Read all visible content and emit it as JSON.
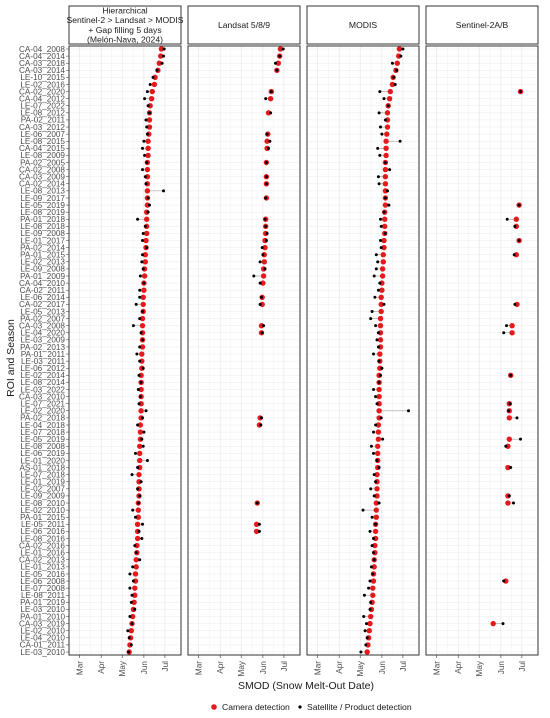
{
  "chart_data": {
    "type": "scatter",
    "subtype": "faceted dumbbell plot",
    "xlabel": "SMOD (Snow Melt-Out Date)",
    "ylabel": "ROI and Season",
    "x_ticks": [
      {
        "label": "Mar",
        "doy": 60
      },
      {
        "label": "Apr",
        "doy": 91
      },
      {
        "label": "May",
        "doy": 121
      },
      {
        "label": "Jun",
        "doy": 152
      },
      {
        "label": "Jul",
        "doy": 182
      }
    ],
    "x_range_doy": [
      45,
      205
    ],
    "grid": true,
    "legend_position": "bottom",
    "legend": [
      {
        "label": "Camera detection",
        "color": "#e41a1c"
      },
      {
        "label": "Satellite / Product detection",
        "color": "#000000"
      }
    ],
    "facets": [
      {
        "title_lines": [
          "Hierarchical",
          "Sentinel-2 > Landsat > MODIS",
          "+ Gap filling 5 days",
          "(Melón-Nava, 2024)"
        ]
      },
      {
        "title_lines": [
          "Landsat 5/8/9"
        ]
      },
      {
        "title_lines": [
          "MODIS"
        ]
      },
      {
        "title_lines": [
          "Sentinel-2A/B"
        ]
      }
    ],
    "rows": [
      "CA-04_2008",
      "CA-04_2014",
      "CA-03_2018",
      "CA-03_2014",
      "LE-10_2015",
      "LE-02_2016",
      "CA-02_2020",
      "CA-04_2012",
      "LE-07_2022",
      "LE-08_2012",
      "PA-02_2011",
      "CA-03_2012",
      "LE-06_2007",
      "LE-08_2015",
      "CA-04_2015",
      "LE-08_2009",
      "PA-02_2005",
      "CA-02_2008",
      "CA-03_2009",
      "CA-02_2014",
      "LE-08_2013",
      "LE-09_2017",
      "LE-05_2019",
      "LE-08_2019",
      "PA-01_2018",
      "LE-08_2018",
      "LE-09_2008",
      "LE-01_2017",
      "PA-02_2014",
      "PA-01_2015",
      "LE-02_2013",
      "LE-09_2008",
      "PA-01_2009",
      "CA-04_2010",
      "CA-02_2011",
      "LE-06_2014",
      "CA-02_2017",
      "LE-05_2013",
      "PA-02_2007",
      "CA-03_2008",
      "LE-04_2020",
      "LE-03_2009",
      "PA-02_2013",
      "PA-01_2011",
      "LE-03_2011",
      "LE-06_2012",
      "LE-02_2014",
      "LE-08_2014",
      "LE-03_2022",
      "CA-03_2010",
      "LE-07_2021",
      "LE-02_2020",
      "PA-02_2018",
      "LE-04_2018",
      "LE-07_2018",
      "LE-05_2019",
      "LE-08_2008",
      "LE-06_2019",
      "LE-01_2020",
      "AS-01_2018",
      "LE-07_2018",
      "LE-01_2019",
      "LE-02_2007",
      "LE-09_2009",
      "LE-08_2010",
      "LE-02_2010",
      "PA-01_2015",
      "LE-05_2011",
      "LE-06_2016",
      "LE-08_2016",
      "CA-02_2016",
      "LE-01_2016",
      "CA-02_2013",
      "LE-01_2013",
      "LE-05_2016",
      "LE-06_2008",
      "LE-07_2008",
      "LE-08_2011",
      "PA-01_2019",
      "LE-03_2010",
      "PA-01_2010",
      "CA-03_2019",
      "LE-02_2010",
      "LE-04_2010",
      "CA-01_2011",
      "LE-03_2010"
    ],
    "values": {
      "camera": [
        177,
        176,
        174,
        172,
        168,
        167,
        164,
        163,
        161,
        160,
        160,
        160,
        159,
        158,
        158,
        158,
        157,
        157,
        157,
        157,
        157,
        157,
        157,
        156,
        156,
        156,
        156,
        155,
        155,
        154,
        154,
        153,
        153,
        152,
        152,
        151,
        151,
        151,
        150,
        150,
        150,
        150,
        150,
        149,
        149,
        149,
        148,
        148,
        148,
        148,
        148,
        148,
        148,
        147,
        147,
        147,
        146,
        146,
        146,
        146,
        145,
        145,
        145,
        145,
        144,
        144,
        144,
        143,
        143,
        143,
        142,
        142,
        141,
        141,
        140,
        140,
        139,
        139,
        138,
        137,
        136,
        135,
        134,
        133,
        132,
        131
      ],
      "hierarchical": [
        181,
        180,
        178,
        171,
        165,
        161,
        157,
        153,
        158,
        160,
        155,
        156,
        157,
        152,
        150,
        153,
        156,
        150,
        154,
        155,
        180,
        158,
        160,
        158,
        143,
        154,
        151,
        150,
        156,
        150,
        149,
        151,
        147,
        152,
        146,
        146,
        141,
        150,
        146,
        137,
        148,
        150,
        146,
        142,
        146,
        151,
        145,
        148,
        144,
        147,
        145,
        155,
        150,
        143,
        152,
        149,
        151,
        140,
        157,
        143,
        135,
        148,
        143,
        146,
        144,
        136,
        140,
        150,
        145,
        149,
        139,
        141,
        146,
        136,
        132,
        137,
        132,
        135,
        134,
        139,
        132,
        135,
        129,
        131,
        134,
        130
      ],
      "landsat": [
        181,
        176,
        170,
        172,
        null,
        null,
        164,
        156,
        null,
        163,
        null,
        null,
        158,
        162,
        160,
        null,
        157,
        null,
        157,
        157,
        null,
        156,
        null,
        null,
        155,
        156,
        158,
        157,
        151,
        152,
        148,
        155,
        139,
        148,
        null,
        150,
        148,
        null,
        null,
        153,
        151,
        null,
        null,
        null,
        null,
        null,
        null,
        null,
        null,
        null,
        null,
        null,
        150,
        149,
        null,
        null,
        null,
        null,
        null,
        null,
        null,
        null,
        null,
        null,
        144,
        null,
        null,
        147,
        147,
        null,
        null,
        null,
        null,
        null,
        null,
        null,
        null,
        null,
        null,
        null,
        null,
        null,
        null,
        null,
        null,
        null
      ],
      "modis": [
        182,
        179,
        167,
        173,
        169,
        171,
        149,
        155,
        161,
        148,
        157,
        150,
        152,
        178,
        146,
        149,
        157,
        163,
        147,
        148,
        160,
        157,
        162,
        155,
        150,
        151,
        157,
        150,
        151,
        144,
        146,
        144,
        141,
        149,
        147,
        142,
        155,
        138,
        136,
        143,
        147,
        145,
        147,
        140,
        148,
        152,
        150,
        148,
        140,
        143,
        145,
        190,
        151,
        143,
        140,
        153,
        137,
        140,
        145,
        148,
        141,
        143,
        136,
        141,
        148,
        125,
        138,
        143,
        135,
        140,
        138,
        140,
        141,
        137,
        139,
        135,
        133,
        127,
        136,
        135,
        126,
        130,
        128,
        131,
        129,
        122
      ],
      "sentinel": [
        null,
        null,
        null,
        null,
        null,
        null,
        180,
        null,
        null,
        null,
        null,
        null,
        null,
        null,
        null,
        null,
        null,
        null,
        null,
        null,
        null,
        null,
        178,
        null,
        161,
        172,
        null,
        178,
        null,
        171,
        null,
        null,
        null,
        null,
        null,
        null,
        172,
        null,
        null,
        160,
        156,
        null,
        null,
        null,
        null,
        null,
        166,
        null,
        null,
        null,
        165,
        163,
        175,
        null,
        null,
        180,
        159,
        null,
        null,
        166,
        null,
        null,
        null,
        164,
        170,
        null,
        null,
        null,
        null,
        null,
        null,
        null,
        null,
        null,
        null,
        156,
        null,
        null,
        null,
        null,
        null,
        155,
        null,
        null,
        null,
        null
      ],
      "sentinel_camera": [
        null,
        null,
        null,
        null,
        null,
        null,
        180,
        null,
        null,
        null,
        null,
        null,
        null,
        null,
        null,
        null,
        null,
        null,
        null,
        null,
        null,
        null,
        178,
        null,
        174,
        174,
        null,
        178,
        null,
        174,
        null,
        null,
        null,
        null,
        null,
        null,
        175,
        null,
        null,
        168,
        168,
        null,
        null,
        null,
        null,
        null,
        166,
        null,
        null,
        null,
        164,
        164,
        164,
        null,
        null,
        164,
        162,
        null,
        null,
        162,
        null,
        null,
        null,
        162,
        162,
        null,
        null,
        null,
        null,
        null,
        null,
        null,
        null,
        null,
        null,
        159,
        null,
        null,
        null,
        null,
        null,
        141,
        null,
        null,
        null,
        null
      ]
    }
  }
}
